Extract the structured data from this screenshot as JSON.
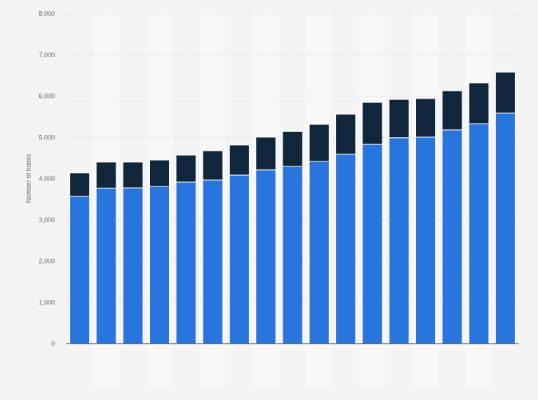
{
  "chart_data": {
    "type": "bar",
    "stacked": true,
    "title": "",
    "xlabel": "",
    "ylabel": "Number of hotels",
    "ylim": [
      0,
      8000
    ],
    "yticks": [
      "0",
      "1,000",
      "2,000",
      "3,000",
      "4,000",
      "5,000",
      "6,000",
      "7,000",
      "8,000"
    ],
    "grid": true,
    "legend": "none",
    "categories": [
      "",
      "",
      "",
      "",
      "",
      "",
      "",
      "",
      "",
      "",
      "",
      "",
      "",
      "",
      "",
      "",
      ""
    ],
    "series": [
      {
        "color": "#2876dd",
        "values": [
          3570,
          3770,
          3775,
          3810,
          3915,
          3965,
          4085,
          4210,
          4295,
          4415,
          4590,
          4830,
          4990,
          5005,
          5180,
          5330,
          5590
        ]
      },
      {
        "color": "#10263d",
        "values": [
          570,
          630,
          625,
          640,
          655,
          710,
          730,
          795,
          845,
          900,
          970,
          1020,
          930,
          935,
          950,
          990,
          990
        ]
      }
    ]
  }
}
